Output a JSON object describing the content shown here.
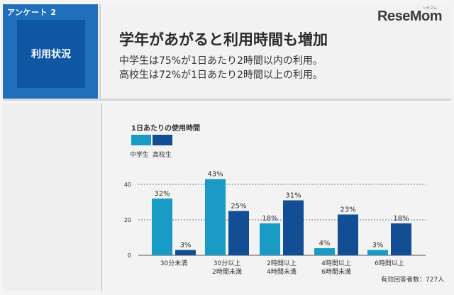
{
  "header": {
    "badge_label": "アンケート 2",
    "category": "利用状況",
    "title": "学年があがると利用時間も増加",
    "line1": "中学生は75%が1日あたり2時間以内の利用。",
    "line2": "高校生は72%が1日あたり2時間以上の利用。"
  },
  "logo": {
    "text": "ReseMom",
    "kana": "リセマム"
  },
  "footnote": "有効回答者数：727人",
  "colors": {
    "middle": "#1a9bc6",
    "high": "#134d94",
    "badge": "#1f6fba"
  },
  "chart_data": {
    "type": "bar",
    "title": "1日あたりの使用時間",
    "categories": [
      "30分未満",
      "30分以上\n2時間未満",
      "2時間以上\n4時間未満",
      "4時間以上\n6時間未満",
      "6時間以上"
    ],
    "series": [
      {
        "name": "中学生",
        "values": [
          32,
          43,
          18,
          4,
          3
        ]
      },
      {
        "name": "高校生",
        "values": [
          3,
          25,
          31,
          23,
          18
        ]
      }
    ],
    "yticks": [
      0,
      20,
      40
    ],
    "ylim": [
      0,
      48
    ],
    "unit": "%",
    "grid": true,
    "legend": "top-left"
  }
}
